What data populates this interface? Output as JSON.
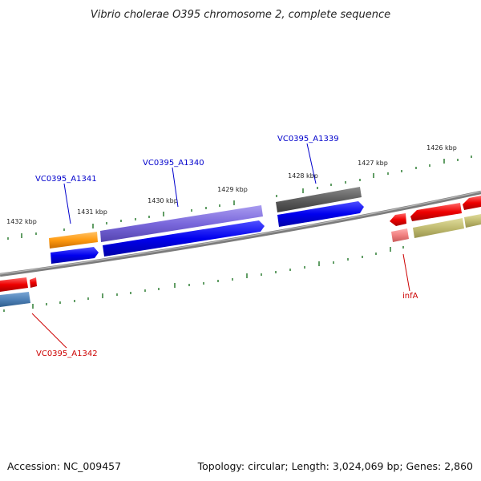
{
  "title": "Vibrio cholerae O395 chromosome 2, complete sequence",
  "footer": {
    "accession": "Accession: NC_009457",
    "summary": "Topology: circular; Length: 3,024,069 bp; Genes: 2,860"
  },
  "colors": {
    "backbone": "#808080",
    "tick": "#2e7d32",
    "label_blue": "#0000cc",
    "label_red": "#cc0000"
  },
  "scale_labels": [
    "1432 kbp",
    "1431 kbp",
    "1430 kbp",
    "1429 kbp",
    "1428 kbp",
    "1427 kbp",
    "1426 kbp"
  ],
  "gene_labels": [
    "VC0395_A1341",
    "VC0395_A1340",
    "VC0395_A1339",
    "infA",
    "VC0395_A1342"
  ]
}
